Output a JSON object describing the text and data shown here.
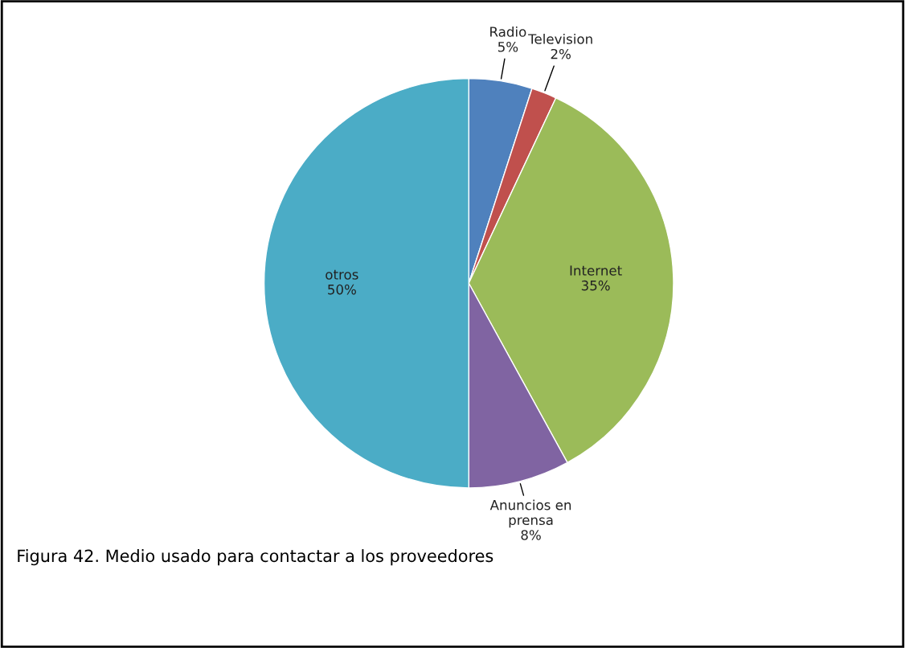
{
  "chart_data": {
    "type": "pie",
    "categories": [
      "Radio",
      "Television",
      "Internet",
      "Anuncios en\nprensa",
      "otros"
    ],
    "values": [
      5,
      2,
      35,
      8,
      50
    ],
    "colors": [
      "#4f81bd",
      "#c0504d",
      "#9bbb59",
      "#8064a2",
      "#4bacc6"
    ],
    "value_labels": [
      "5%",
      "2%",
      "35%",
      "8%",
      "50%"
    ],
    "annotations": [
      "Figura 42. Medio usado para contactar a los proveedores"
    ]
  }
}
